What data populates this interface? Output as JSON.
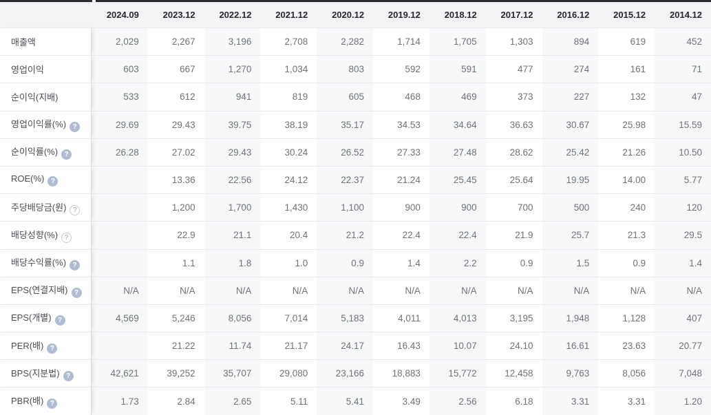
{
  "table": {
    "corner_label": "",
    "columns": [
      "2024.09",
      "2023.12",
      "2022.12",
      "2021.12",
      "2020.12",
      "2019.12",
      "2018.12",
      "2017.12",
      "2016.12",
      "2015.12",
      "2014.12"
    ],
    "rows": [
      {
        "label": "매출액",
        "icon": "none",
        "values": [
          "2,029",
          "2,267",
          "3,196",
          "2,708",
          "2,282",
          "1,714",
          "1,705",
          "1,303",
          "894",
          "619",
          "452"
        ]
      },
      {
        "label": "영업이익",
        "icon": "none",
        "values": [
          "603",
          "667",
          "1,270",
          "1,034",
          "803",
          "592",
          "591",
          "477",
          "274",
          "161",
          "71"
        ]
      },
      {
        "label": "순이익(지배)",
        "icon": "none",
        "values": [
          "533",
          "612",
          "941",
          "819",
          "605",
          "468",
          "469",
          "373",
          "227",
          "132",
          "47"
        ]
      },
      {
        "label": "영업이익률(%)",
        "icon": "filled",
        "values": [
          "29.69",
          "29.43",
          "39.75",
          "38.19",
          "35.17",
          "34.53",
          "34.64",
          "36.63",
          "30.67",
          "25.98",
          "15.59"
        ]
      },
      {
        "label": "순이익률(%)",
        "icon": "filled",
        "values": [
          "26.28",
          "27.02",
          "29.43",
          "30.24",
          "26.52",
          "27.33",
          "27.48",
          "28.62",
          "25.42",
          "21.26",
          "10.50"
        ]
      },
      {
        "label": "ROE(%)",
        "icon": "filled",
        "values": [
          "",
          "13.36",
          "22.56",
          "24.12",
          "22.37",
          "21.24",
          "25.45",
          "25.64",
          "19.95",
          "14.00",
          "5.77"
        ]
      },
      {
        "label": "주당배당금(원)",
        "icon": "outline",
        "values": [
          "",
          "1,200",
          "1,700",
          "1,430",
          "1,100",
          "900",
          "900",
          "700",
          "500",
          "240",
          "120"
        ]
      },
      {
        "label": "배당성향(%)",
        "icon": "outline",
        "values": [
          "",
          "22.9",
          "21.1",
          "20.4",
          "21.2",
          "22.4",
          "22.4",
          "21.9",
          "25.7",
          "21.3",
          "29.5"
        ]
      },
      {
        "label": "배당수익률(%)",
        "icon": "filled",
        "values": [
          "",
          "1.1",
          "1.8",
          "1.0",
          "0.9",
          "1.4",
          "2.2",
          "0.9",
          "1.5",
          "0.9",
          "1.4"
        ]
      },
      {
        "label": "EPS(연결지배)",
        "icon": "filled",
        "values": [
          "N/A",
          "N/A",
          "N/A",
          "N/A",
          "N/A",
          "N/A",
          "N/A",
          "N/A",
          "N/A",
          "N/A",
          "N/A"
        ]
      },
      {
        "label": "EPS(개별)",
        "icon": "filled",
        "values": [
          "4,569",
          "5,246",
          "8,056",
          "7,014",
          "5,183",
          "4,011",
          "4,013",
          "3,195",
          "1,948",
          "1,128",
          "407"
        ]
      },
      {
        "label": "PER(배)",
        "icon": "filled",
        "values": [
          "",
          "21.22",
          "11.74",
          "21.17",
          "24.17",
          "16.43",
          "10.07",
          "24.10",
          "16.61",
          "23.63",
          "20.77"
        ]
      },
      {
        "label": "BPS(지분법)",
        "icon": "filled",
        "values": [
          "42,621",
          "39,252",
          "35,707",
          "29,080",
          "23,166",
          "18,883",
          "15,772",
          "12,458",
          "9,763",
          "8,056",
          "7,048"
        ]
      },
      {
        "label": "PBR(배)",
        "icon": "filled",
        "values": [
          "1.73",
          "2.84",
          "2.65",
          "5.11",
          "5.41",
          "3.49",
          "2.56",
          "6.18",
          "3.31",
          "3.31",
          "1.20"
        ]
      }
    ],
    "help_icon_glyph": "?"
  },
  "colors": {
    "top_bar": "#2a2c30",
    "header_bg": "#f2f4f6",
    "header_text": "#26282b",
    "cell_text": "#707376",
    "label_text": "#4c4f54",
    "row_divider": "#e7e9ec",
    "column_stripe": "#f7f8f9",
    "label_column_border": "#dbdde0",
    "help_icon_filled_bg": "#b0bcd1",
    "help_icon_outline_border": "#c7cad0"
  }
}
